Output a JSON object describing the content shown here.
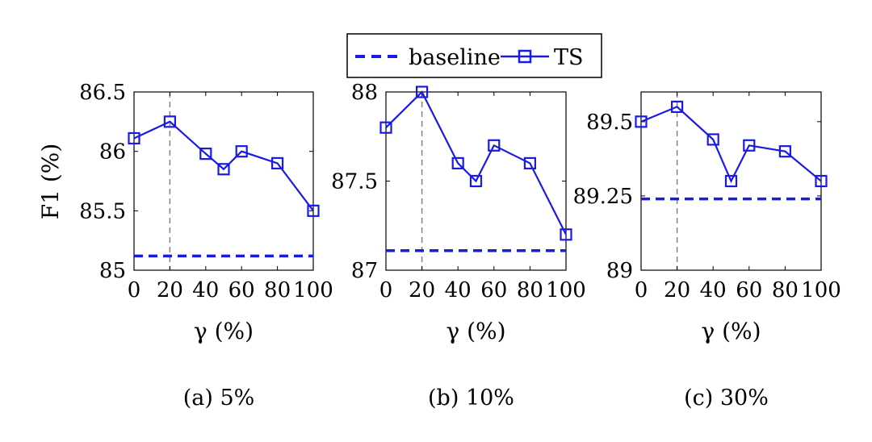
{
  "legend": {
    "baseline_label": "baseline",
    "ts_label": "TS"
  },
  "colors": {
    "series": "#1a1ae6",
    "marker_line": "#1a1ae6",
    "reference_line": "#808080"
  },
  "chart_data": [
    {
      "type": "line",
      "caption": "(a) 5%",
      "xlabel": "γ (%)",
      "ylabel": "F1 (%)",
      "xlim": [
        0,
        100
      ],
      "ylim": [
        85,
        86.5
      ],
      "x_ticks": [
        0,
        20,
        40,
        60,
        80,
        100
      ],
      "y_ticks": [
        85,
        85.5,
        86,
        86.5
      ],
      "y_tick_labels": [
        "85",
        "85.5",
        "86",
        "86.5"
      ],
      "x_tick_labels": [
        "0",
        "20",
        "40",
        "60",
        "80",
        "100"
      ],
      "reference_x": 20,
      "series": [
        {
          "name": "TS",
          "x": [
            0,
            20,
            40,
            50,
            60,
            80,
            100
          ],
          "y": [
            86.11,
            86.25,
            85.98,
            85.85,
            86.0,
            85.9,
            85.5
          ],
          "style": "solid-square-markers"
        },
        {
          "name": "baseline",
          "y": 85.12,
          "style": "dashed"
        }
      ]
    },
    {
      "type": "line",
      "caption": "(b) 10%",
      "xlabel": "γ (%)",
      "ylabel": "",
      "xlim": [
        0,
        100
      ],
      "ylim": [
        87,
        88
      ],
      "x_ticks": [
        0,
        20,
        40,
        60,
        80,
        100
      ],
      "y_ticks": [
        87,
        87.5,
        88
      ],
      "y_tick_labels": [
        "87",
        "87.5",
        "88"
      ],
      "x_tick_labels": [
        "0",
        "20",
        "40",
        "60",
        "80",
        "100"
      ],
      "reference_x": 20,
      "series": [
        {
          "name": "TS",
          "x": [
            0,
            20,
            40,
            50,
            60,
            80,
            100
          ],
          "y": [
            87.8,
            88.0,
            87.6,
            87.5,
            87.7,
            87.6,
            87.2
          ],
          "style": "solid-square-markers"
        },
        {
          "name": "baseline",
          "y": 87.11,
          "style": "dashed"
        }
      ]
    },
    {
      "type": "line",
      "caption": "(c) 30%",
      "xlabel": "γ (%)",
      "ylabel": "",
      "xlim": [
        0,
        100
      ],
      "ylim": [
        89,
        89.6
      ],
      "x_ticks": [
        0,
        20,
        40,
        60,
        80,
        100
      ],
      "y_ticks": [
        89,
        89.25,
        89.5
      ],
      "y_tick_labels": [
        "89",
        "89.25",
        "89.5"
      ],
      "x_tick_labels": [
        "0",
        "20",
        "40",
        "60",
        "80",
        "100"
      ],
      "reference_x": 20,
      "series": [
        {
          "name": "TS",
          "x": [
            0,
            20,
            40,
            50,
            60,
            80,
            100
          ],
          "y": [
            89.5,
            89.55,
            89.44,
            89.3,
            89.42,
            89.4,
            89.3
          ],
          "style": "solid-square-markers"
        },
        {
          "name": "baseline",
          "y": 89.24,
          "style": "dashed"
        }
      ]
    }
  ]
}
